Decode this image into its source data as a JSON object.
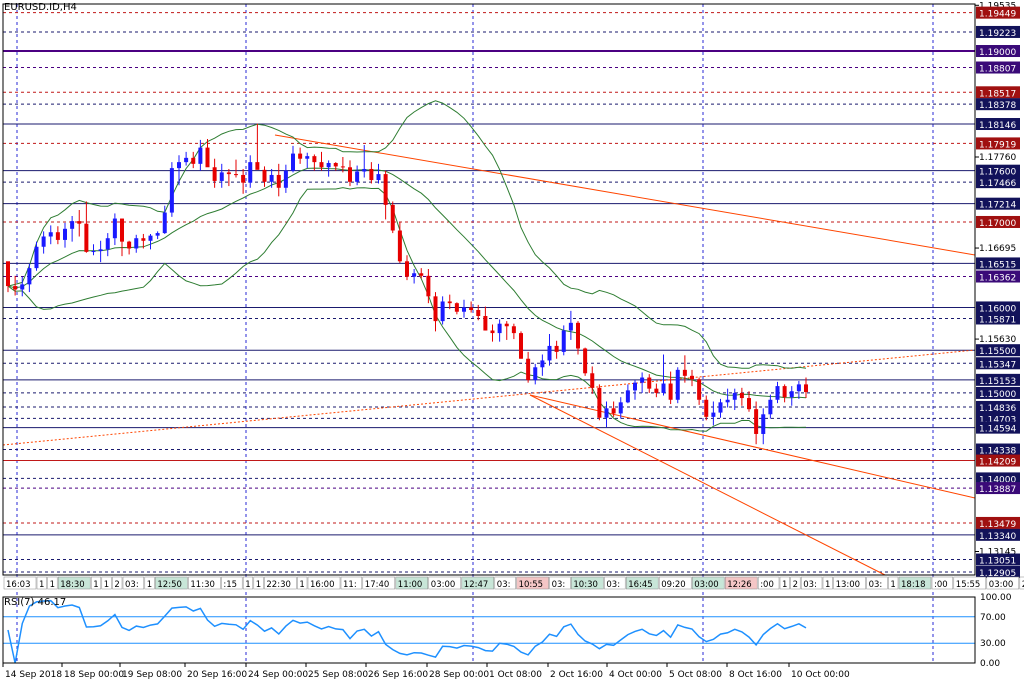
{
  "symbol_title": "EURUSD.ID,H4",
  "rsi_title": "RSI(7) 46.17",
  "colors": {
    "bull": "#1a1aff",
    "bear": "#e60000",
    "grid": "#b8b8b8",
    "bands": "#2e7d32",
    "trend": "#ff4500",
    "rsi": "#1e90ff"
  },
  "chart_data": {
    "type": "candlestick",
    "x_labels": [
      "14 Sep 2018",
      "18 Sep 00:00",
      "19 Sep 08:00",
      "20 Sep 16:00",
      "24 Sep 00:00",
      "25 Sep 08:00",
      "26 Sep 16:00",
      "28 Sep 00:00",
      "1 Oct 08:00",
      "2 Oct 16:00",
      "4 Oct 00:00",
      "5 Oct 08:00",
      "8 Oct 16:00",
      "10 Oct 00:00"
    ],
    "price_axis_ticks": [
      "1.19535",
      "1.19449",
      "1.19223",
      "1.19000",
      "1.18807",
      "1.18517",
      "1.18378",
      "1.18146",
      "1.17919",
      "1.17760",
      "1.17600",
      "1.17466",
      "1.17214",
      "1.17000",
      "1.16695",
      "1.16515",
      "1.16362",
      "1.16000",
      "1.15871",
      "1.15630",
      "1.15500",
      "1.15347",
      "1.15153",
      "1.15000",
      "1.14836",
      "1.14703",
      "1.14594",
      "1.14338",
      "1.14209",
      "1.14000",
      "1.13887",
      "1.13479",
      "1.13340",
      "1.13145",
      "1.13051",
      "1.12905"
    ],
    "highlight_labels": [
      "1.19449",
      "1.19223",
      "1.19000",
      "1.18807",
      "1.18517",
      "1.18378",
      "1.18146",
      "1.17919",
      "1.17600",
      "1.17466",
      "1.17214",
      "1.17000",
      "1.16515",
      "1.16362",
      "1.16000",
      "1.15871",
      "1.15500",
      "1.15347",
      "1.15153",
      "1.15000",
      "1.14836",
      "1.14703",
      "1.14594",
      "1.14338",
      "1.14209",
      "1.14000",
      "1.13887",
      "1.13479",
      "1.13340",
      "1.13051",
      "1.12905"
    ],
    "y_range": [
      1.1287,
      1.1955
    ],
    "time_strip": [
      "16:03",
      "1",
      "1",
      "18:30",
      "1",
      "1",
      "2",
      "03:",
      "1",
      "12:50",
      "11:30",
      ":15",
      "1",
      "1",
      "22:30",
      "1",
      "16:00",
      "11:",
      "17:40",
      "11:00",
      "03:00",
      "12:47",
      "03:",
      "10:55",
      "03:",
      "10:30",
      "03:",
      "16:45",
      "09:20",
      "03:00",
      "12:26",
      ":00",
      "1",
      "2",
      "03:",
      "1",
      "13:00",
      "03:",
      "1",
      "18:18",
      ":00",
      "15:55",
      "03:00",
      "20",
      "03",
      "2",
      "05:30"
    ],
    "rsi": {
      "ylim": [
        0,
        100
      ],
      "ticks": [
        "100.00",
        "70.00",
        "30.00",
        "0.00"
      ],
      "levels": [
        70,
        30
      ],
      "current": 46.17
    },
    "candles": [
      [
        1.1654,
        1.1652,
        1.1618,
        1.1625
      ],
      [
        1.1625,
        1.1637,
        1.1614,
        1.1621
      ],
      [
        1.1621,
        1.1636,
        1.1613,
        1.1627
      ],
      [
        1.1627,
        1.1651,
        1.1618,
        1.1646
      ],
      [
        1.1646,
        1.1677,
        1.1643,
        1.1671
      ],
      [
        1.1671,
        1.1689,
        1.1663,
        1.1683
      ],
      [
        1.1683,
        1.1696,
        1.1674,
        1.1688
      ],
      [
        1.1688,
        1.1695,
        1.1674,
        1.1679
      ],
      [
        1.1679,
        1.1699,
        1.167,
        1.1692
      ],
      [
        1.1692,
        1.1707,
        1.1677,
        1.1701
      ],
      [
        1.1701,
        1.1714,
        1.1683,
        1.1698
      ],
      [
        1.1698,
        1.1724,
        1.1664,
        1.1665
      ],
      [
        1.1665,
        1.1674,
        1.1661,
        1.1666
      ],
      [
        1.1666,
        1.1678,
        1.1653,
        1.1668
      ],
      [
        1.1668,
        1.1687,
        1.166,
        1.1681
      ],
      [
        1.1681,
        1.171,
        1.1673,
        1.1704
      ],
      [
        1.1704,
        1.1704,
        1.166,
        1.1677
      ],
      [
        1.1677,
        1.1678,
        1.1662,
        1.1669
      ],
      [
        1.1669,
        1.1685,
        1.1664,
        1.1681
      ],
      [
        1.1681,
        1.1686,
        1.1669,
        1.1678
      ],
      [
        1.1678,
        1.1686,
        1.1668,
        1.1684
      ],
      [
        1.1684,
        1.1689,
        1.168,
        1.1687
      ],
      [
        1.1687,
        1.1719,
        1.1686,
        1.1711
      ],
      [
        1.1711,
        1.177,
        1.1706,
        1.1763
      ],
      [
        1.1763,
        1.1778,
        1.1743,
        1.177
      ],
      [
        1.177,
        1.1782,
        1.1766,
        1.1775
      ],
      [
        1.1775,
        1.1782,
        1.1763,
        1.1768
      ],
      [
        1.1768,
        1.1796,
        1.176,
        1.1787
      ],
      [
        1.1787,
        1.1797,
        1.1766,
        1.1764
      ],
      [
        1.1764,
        1.1774,
        1.174,
        1.1748
      ],
      [
        1.1748,
        1.1768,
        1.174,
        1.1758
      ],
      [
        1.1758,
        1.1762,
        1.1742,
        1.1756
      ],
      [
        1.1756,
        1.1773,
        1.1752,
        1.1755
      ],
      [
        1.1755,
        1.1762,
        1.1733,
        1.1746
      ],
      [
        1.1746,
        1.1778,
        1.174,
        1.177
      ],
      [
        1.177,
        1.1815,
        1.1763,
        1.1761
      ],
      [
        1.1761,
        1.1765,
        1.1741,
        1.1747
      ],
      [
        1.1747,
        1.1762,
        1.174,
        1.1755
      ],
      [
        1.1755,
        1.1768,
        1.173,
        1.174
      ],
      [
        1.174,
        1.1767,
        1.1734,
        1.176
      ],
      [
        1.176,
        1.1789,
        1.1758,
        1.178
      ],
      [
        1.178,
        1.1787,
        1.1768,
        1.1774
      ],
      [
        1.1774,
        1.1781,
        1.1763,
        1.1777
      ],
      [
        1.1777,
        1.1779,
        1.176,
        1.177
      ],
      [
        1.177,
        1.1782,
        1.176,
        1.1764
      ],
      [
        1.1764,
        1.1772,
        1.1753,
        1.1769
      ],
      [
        1.1769,
        1.177,
        1.176,
        1.1765
      ],
      [
        1.1765,
        1.1776,
        1.1758,
        1.1764
      ],
      [
        1.1764,
        1.1772,
        1.1742,
        1.1747
      ],
      [
        1.1747,
        1.1766,
        1.1743,
        1.1759
      ],
      [
        1.1759,
        1.179,
        1.1752,
        1.1762
      ],
      [
        1.1762,
        1.177,
        1.1745,
        1.1749
      ],
      [
        1.1749,
        1.1768,
        1.1745,
        1.1756
      ],
      [
        1.1756,
        1.176,
        1.1703,
        1.172
      ],
      [
        1.172,
        1.1724,
        1.1687,
        1.169
      ],
      [
        1.169,
        1.17,
        1.1652,
        1.1654
      ],
      [
        1.1654,
        1.1661,
        1.1632,
        1.1636
      ],
      [
        1.1636,
        1.1645,
        1.1628,
        1.164
      ],
      [
        1.164,
        1.1646,
        1.1634,
        1.1637
      ],
      [
        1.1637,
        1.1645,
        1.1605,
        1.1613
      ],
      [
        1.1613,
        1.1618,
        1.1572,
        1.1584
      ],
      [
        1.1584,
        1.1613,
        1.158,
        1.1607
      ],
      [
        1.1607,
        1.1615,
        1.1598,
        1.1605
      ],
      [
        1.1605,
        1.1606,
        1.1592,
        1.1595
      ],
      [
        1.1595,
        1.1609,
        1.1588,
        1.16
      ],
      [
        1.16,
        1.1607,
        1.1594,
        1.1597
      ],
      [
        1.1597,
        1.1603,
        1.1585,
        1.159
      ],
      [
        1.159,
        1.1601,
        1.1573,
        1.1573
      ],
      [
        1.1573,
        1.158,
        1.156,
        1.157
      ],
      [
        1.157,
        1.1586,
        1.156,
        1.1581
      ],
      [
        1.1581,
        1.1584,
        1.1562,
        1.1578
      ],
      [
        1.1578,
        1.1581,
        1.1563,
        1.157
      ],
      [
        1.157,
        1.1572,
        1.154,
        1.154
      ],
      [
        1.154,
        1.1548,
        1.1512,
        1.1515
      ],
      [
        1.1515,
        1.1534,
        1.151,
        1.153
      ],
      [
        1.153,
        1.1545,
        1.152,
        1.1538
      ],
      [
        1.1538,
        1.1569,
        1.1532,
        1.1555
      ],
      [
        1.1555,
        1.1561,
        1.154,
        1.1548
      ],
      [
        1.1548,
        1.1579,
        1.1544,
        1.1573
      ],
      [
        1.1573,
        1.1596,
        1.1562,
        1.1582
      ],
      [
        1.1582,
        1.1584,
        1.1545,
        1.1552
      ],
      [
        1.1552,
        1.1553,
        1.152,
        1.1523
      ],
      [
        1.1523,
        1.1531,
        1.1499,
        1.1506
      ],
      [
        1.1506,
        1.151,
        1.1468,
        1.1471
      ],
      [
        1.1471,
        1.149,
        1.146,
        1.1482
      ],
      [
        1.1482,
        1.149,
        1.1472,
        1.1476
      ],
      [
        1.1476,
        1.1495,
        1.147,
        1.1489
      ],
      [
        1.1489,
        1.151,
        1.1488,
        1.1503
      ],
      [
        1.1503,
        1.1515,
        1.1492,
        1.1512
      ],
      [
        1.1512,
        1.1524,
        1.15,
        1.1518
      ],
      [
        1.1518,
        1.1522,
        1.15,
        1.1505
      ],
      [
        1.1505,
        1.1511,
        1.1495,
        1.15
      ],
      [
        1.15,
        1.1545,
        1.1497,
        1.1511
      ],
      [
        1.1511,
        1.1525,
        1.1487,
        1.1492
      ],
      [
        1.1492,
        1.153,
        1.1488,
        1.1527
      ],
      [
        1.1527,
        1.1544,
        1.1512,
        1.152
      ],
      [
        1.152,
        1.1527,
        1.1508,
        1.1516
      ],
      [
        1.1516,
        1.1518,
        1.1486,
        1.1492
      ],
      [
        1.1492,
        1.1497,
        1.1468,
        1.1472
      ],
      [
        1.1472,
        1.149,
        1.1462,
        1.1477
      ],
      [
        1.1477,
        1.1493,
        1.1471,
        1.1489
      ],
      [
        1.1489,
        1.1505,
        1.1483,
        1.1492
      ],
      [
        1.1492,
        1.1505,
        1.148,
        1.15
      ],
      [
        1.15,
        1.1506,
        1.1485,
        1.1494
      ],
      [
        1.1494,
        1.1502,
        1.1478,
        1.1481
      ],
      [
        1.1481,
        1.149,
        1.144,
        1.1452
      ],
      [
        1.1452,
        1.1482,
        1.144,
        1.1475
      ],
      [
        1.1475,
        1.1498,
        1.147,
        1.1492
      ],
      [
        1.1492,
        1.1513,
        1.1488,
        1.1508
      ],
      [
        1.1508,
        1.151,
        1.1489,
        1.1495
      ],
      [
        1.1495,
        1.1508,
        1.1485,
        1.1502
      ],
      [
        1.1502,
        1.1514,
        1.1493,
        1.151
      ],
      [
        1.151,
        1.1518,
        1.1494,
        1.1501
      ]
    ]
  }
}
